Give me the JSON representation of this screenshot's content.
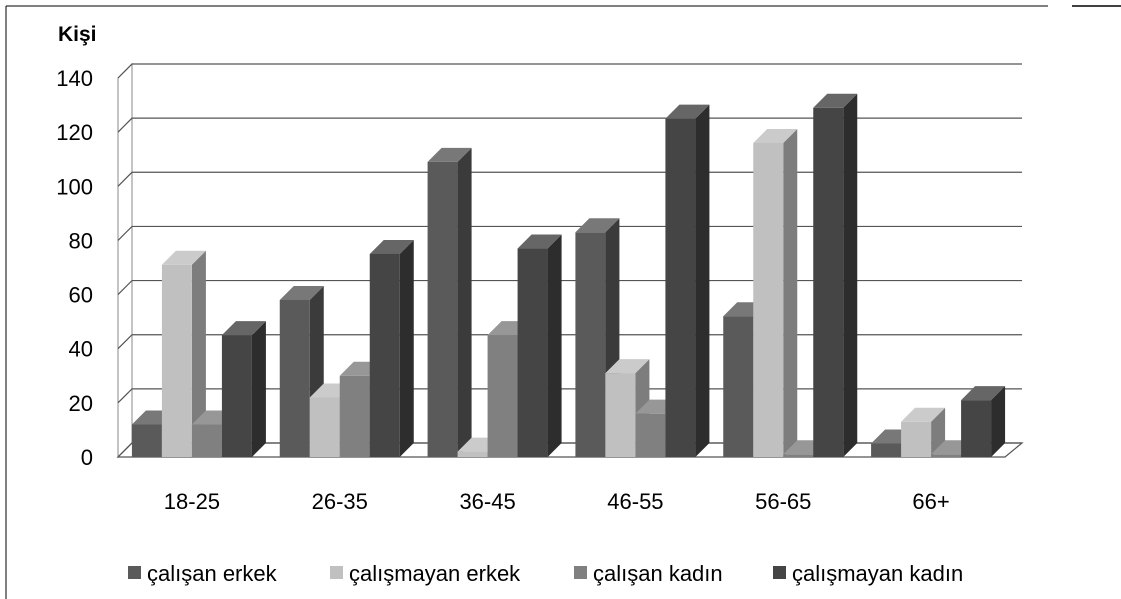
{
  "chart_data": {
    "type": "bar",
    "ylabel": "Kişi",
    "xlabel": "",
    "ylim": [
      0,
      140
    ],
    "yticks": [
      0,
      20,
      40,
      60,
      80,
      100,
      120,
      140
    ],
    "categories": [
      "18-25",
      "26-35",
      "36-45",
      "46-55",
      "56-65",
      "66+"
    ],
    "series": [
      {
        "name": "çalışan erkek",
        "values": [
          12,
          58,
          109,
          83,
          52,
          5
        ],
        "color": "#5a5a5a"
      },
      {
        "name": "çalışmayan erkek",
        "values": [
          71,
          22,
          2,
          31,
          116,
          13
        ],
        "color": "#c0c0c0"
      },
      {
        "name": "çalışan kadın",
        "values": [
          12,
          30,
          45,
          16,
          1,
          1
        ],
        "color": "#808080"
      },
      {
        "name": "çalışmayan kadın",
        "values": [
          45,
          75,
          77,
          125,
          129,
          21
        ],
        "color": "#454545"
      }
    ],
    "grid": true,
    "legend_position": "bottom",
    "style": "3d-clustered-column"
  }
}
